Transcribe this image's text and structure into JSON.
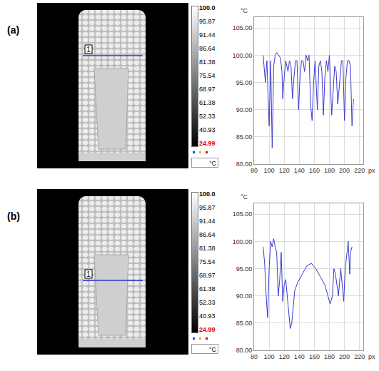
{
  "panels": [
    {
      "label": "(a)",
      "marker_label": "1",
      "colorbar_ticks": [
        {
          "value": 100,
          "label": "100.0"
        },
        95.87,
        91.44,
        86.64,
        81.38,
        75.54,
        68.97,
        61.38,
        52.33,
        40.93,
        24.99
      ],
      "colorbar_unit": "°C"
    },
    {
      "label": "(b)",
      "marker_label": "1",
      "colorbar_ticks": [
        {
          "value": 100,
          "label": "100.0"
        },
        95.87,
        91.44,
        86.64,
        81.38,
        75.54,
        68.97,
        61.38,
        52.33,
        40.93,
        24.99
      ],
      "colorbar_unit": "°C"
    }
  ],
  "chart_data": [
    {
      "type": "line",
      "x_label": "px",
      "y_label": "°C",
      "color": "#3a3ad0",
      "grid": true,
      "xlim": [
        80,
        225
      ],
      "ylim": [
        80,
        107
      ],
      "xticks": [
        80,
        100,
        120,
        140,
        160,
        180,
        200,
        220
      ],
      "yticks": [
        {
          "value": 80,
          "label": "80.00"
        },
        {
          "value": 85,
          "label": "85.00"
        },
        {
          "value": 90,
          "label": "90.00"
        },
        {
          "value": 95,
          "label": "95.00"
        },
        {
          "value": 100,
          "label": "100.00"
        },
        {
          "value": 105,
          "label": "105.00"
        }
      ],
      "x": [
        92,
        95,
        97,
        100,
        102,
        104,
        106,
        108,
        110,
        115,
        117,
        118,
        120,
        122,
        125,
        127,
        129,
        131,
        133,
        135,
        137,
        139,
        141,
        143,
        145,
        147,
        149,
        151,
        153,
        155,
        157,
        159,
        161,
        164,
        166,
        168,
        170,
        172,
        174,
        176,
        178,
        180,
        183,
        185,
        187,
        189,
        191,
        193,
        196,
        198,
        200,
        202,
        204,
        206,
        208,
        210,
        212
      ],
      "values": [
        100,
        95,
        99,
        87,
        99,
        83,
        98,
        100,
        100.5,
        99.5,
        97,
        92,
        96,
        99,
        97,
        99,
        98,
        92,
        96,
        99,
        99,
        90,
        96,
        99,
        99,
        97,
        100,
        99,
        100,
        91,
        88,
        95,
        99,
        90,
        98,
        99,
        97,
        89,
        96,
        99,
        97,
        100,
        89,
        94,
        98,
        97,
        91,
        94,
        99,
        99,
        88,
        96,
        99,
        99,
        98,
        87,
        92
      ]
    },
    {
      "type": "line",
      "x_label": "px",
      "y_label": "°C",
      "color": "#3a3ad0",
      "grid": true,
      "xlim": [
        80,
        225
      ],
      "ylim": [
        80,
        107
      ],
      "xticks": [
        80,
        100,
        120,
        140,
        160,
        180,
        200,
        220
      ],
      "yticks": [
        {
          "value": 80,
          "label": "80.00"
        },
        {
          "value": 85,
          "label": "85.00"
        },
        {
          "value": 90,
          "label": "90.00"
        },
        {
          "value": 95,
          "label": "95.00"
        },
        {
          "value": 100,
          "label": "100.00"
        },
        {
          "value": 105,
          "label": "105.00"
        }
      ],
      "x": [
        92,
        94,
        96,
        98,
        100,
        102,
        104,
        106,
        108,
        110,
        112,
        114,
        116,
        118,
        120,
        122,
        124,
        126,
        128,
        130,
        132,
        134,
        138,
        144,
        150,
        156,
        162,
        168,
        174,
        178,
        181,
        184,
        186,
        188,
        190,
        192,
        195,
        197,
        199,
        201,
        203,
        205,
        207,
        208,
        210
      ],
      "values": [
        99,
        96,
        90,
        86,
        95,
        100,
        99,
        100.5,
        99,
        98,
        90,
        93,
        98,
        89,
        92,
        93,
        90,
        87,
        84,
        85,
        88,
        91,
        92.5,
        94,
        95.5,
        96,
        95,
        93.5,
        92,
        90,
        88.5,
        90,
        95,
        94,
        92,
        90,
        95,
        92,
        89,
        95,
        98,
        100,
        94,
        98,
        99
      ]
    }
  ]
}
